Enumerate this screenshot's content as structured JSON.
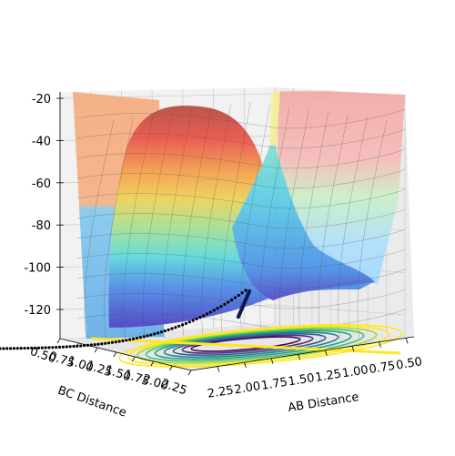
{
  "chart_data": {
    "type": "surface",
    "title": "",
    "xlabel": "AB Distance",
    "ylabel": "BC Distance",
    "zlabel": "",
    "x_ticks": [
      "0.50",
      "0.75",
      "1.00",
      "1.25",
      "1.50",
      "1.75",
      "2.00",
      "2.25"
    ],
    "y_ticks": [
      "0.50",
      "0.75",
      "1.00",
      "1.25",
      "1.50",
      "1.75",
      "2.00",
      "2.25"
    ],
    "z_ticks": [
      "-20",
      "-40",
      "-60",
      "-80",
      "-100",
      "-120"
    ],
    "xlim": [
      0.5,
      2.3
    ],
    "ylim": [
      0.5,
      2.3
    ],
    "zlim": [
      -130,
      -20
    ],
    "grid": true,
    "surface_colormap": "jet",
    "surface_alpha": 0.5,
    "contour_colormap": "viridis",
    "trajectory": {
      "color": "#000000",
      "marker": "dot",
      "description_points": [
        [
          2.3,
          0.74,
          -128
        ],
        [
          2.2,
          0.74,
          -128
        ],
        [
          2.0,
          0.74,
          -127
        ],
        [
          1.8,
          0.74,
          -126
        ],
        [
          1.6,
          0.75,
          -124
        ],
        [
          1.4,
          0.76,
          -122
        ],
        [
          1.2,
          0.78,
          -118
        ],
        [
          1.05,
          0.82,
          -112
        ],
        [
          0.97,
          0.88,
          -106
        ]
      ]
    },
    "colors": {
      "pane": "#f2f2f2",
      "grid": "#cccccc",
      "axis": "#000000"
    }
  }
}
